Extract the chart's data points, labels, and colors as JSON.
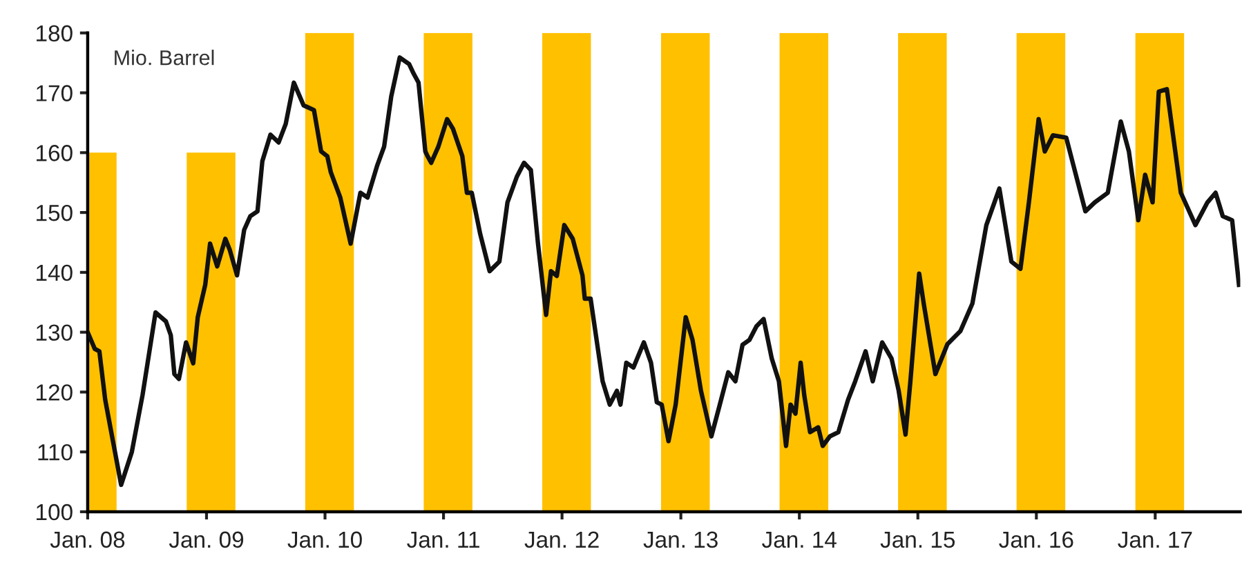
{
  "chart_data": {
    "type": "line",
    "ylabel": "Mio. Barrel",
    "xlim": [
      "2008-01-01",
      "2017-09-20"
    ],
    "ylim": [
      100,
      180
    ],
    "xticks": [
      {
        "value": "2008-01-01",
        "label": "Jan. 08"
      },
      {
        "value": "2009-01-01",
        "label": "Jan. 09"
      },
      {
        "value": "2010-01-01",
        "label": "Jan. 10"
      },
      {
        "value": "2011-01-01",
        "label": "Jan. 11"
      },
      {
        "value": "2012-01-01",
        "label": "Jan. 12"
      },
      {
        "value": "2013-01-01",
        "label": "Jan. 13"
      },
      {
        "value": "2014-01-01",
        "label": "Jan. 14"
      },
      {
        "value": "2015-01-01",
        "label": "Jan. 15"
      },
      {
        "value": "2016-01-01",
        "label": "Jan. 16"
      },
      {
        "value": "2017-01-01",
        "label": "Jan. 17"
      }
    ],
    "yticks": [
      100,
      110,
      120,
      130,
      140,
      150,
      160,
      170,
      180
    ],
    "series": [
      {
        "type": "bar",
        "color": "#ffc000",
        "x": [
          "2008-01-15",
          "2009-01-15",
          "2010-01-15",
          "2011-01-15",
          "2012-01-15",
          "2013-01-15",
          "2014-01-15",
          "2015-01-15",
          "2016-01-15",
          "2017-01-15"
        ],
        "values": [
          160,
          160,
          180,
          180,
          180,
          180,
          180,
          180,
          180,
          180
        ]
      },
      {
        "color": "#111111",
        "x": [
          "2008-01-01",
          "2008-01-23",
          "2008-02-06",
          "2008-02-24",
          "2008-04-13",
          "2008-05-16",
          "2008-06-18",
          "2008-07-28",
          "2008-08-29",
          "2008-09-13",
          "2008-09-24",
          "2008-10-08",
          "2008-10-30",
          "2008-11-21",
          "2008-12-05",
          "2008-12-28",
          "2009-01-12",
          "2009-02-03",
          "2009-02-28",
          "2009-03-14",
          "2009-04-05",
          "2009-04-27",
          "2009-05-16",
          "2009-06-07",
          "2009-06-22",
          "2009-07-17",
          "2009-08-11",
          "2009-09-02",
          "2009-09-27",
          "2009-10-27",
          "2009-11-28",
          "2009-12-20",
          "2010-01-08",
          "2010-01-19",
          "2010-02-17",
          "2010-03-21",
          "2010-04-20",
          "2010-05-12",
          "2010-06-11",
          "2010-07-02",
          "2010-07-24",
          "2010-08-19",
          "2010-09-17",
          "2010-10-01",
          "2010-10-16",
          "2010-11-06",
          "2010-11-13",
          "2010-11-24",
          "2010-12-16",
          "2011-01-12",
          "2011-01-30",
          "2011-02-28",
          "2011-03-14",
          "2011-03-29",
          "2011-04-24",
          "2011-05-23",
          "2011-06-22",
          "2011-07-17",
          "2011-08-15",
          "2011-09-06",
          "2011-09-27",
          "2011-10-19",
          "2011-11-13",
          "2011-11-28",
          "2011-12-16",
          "2012-01-08",
          "2012-02-03",
          "2012-03-04",
          "2012-03-11",
          "2012-03-29",
          "2012-05-05",
          "2012-05-27",
          "2012-06-18",
          "2012-06-29",
          "2012-07-17",
          "2012-08-08",
          "2012-09-09",
          "2012-10-01",
          "2012-10-19",
          "2012-11-03",
          "2012-11-24",
          "2012-12-16",
          "2013-01-16",
          "2013-02-06",
          "2013-03-04",
          "2013-04-05",
          "2013-05-01",
          "2013-05-27",
          "2013-06-18",
          "2013-07-10",
          "2013-07-31",
          "2013-08-22",
          "2013-09-13",
          "2013-10-08",
          "2013-10-30",
          "2013-11-21",
          "2013-12-05",
          "2013-12-20",
          "2014-01-05",
          "2014-01-16",
          "2014-02-03",
          "2014-02-28",
          "2014-03-14",
          "2014-04-05",
          "2014-05-01",
          "2014-05-31",
          "2014-06-22",
          "2014-07-24",
          "2014-08-15",
          "2014-09-13",
          "2014-10-12",
          "2014-11-03",
          "2014-11-24",
          "2014-12-09",
          "2015-01-05",
          "2015-01-19",
          "2015-02-24",
          "2015-04-02",
          "2015-05-12",
          "2015-06-18",
          "2015-07-31",
          "2015-09-09",
          "2015-10-16",
          "2015-11-13",
          "2015-12-09",
          "2016-01-08",
          "2016-01-27",
          "2016-02-21",
          "2016-04-02",
          "2016-04-24",
          "2016-05-31",
          "2016-06-29",
          "2016-08-08",
          "2016-09-17",
          "2016-10-12",
          "2016-11-10",
          "2016-12-01",
          "2016-12-24",
          "2017-01-12",
          "2017-02-06",
          "2017-03-21",
          "2017-05-05",
          "2017-06-11",
          "2017-07-06",
          "2017-07-28",
          "2017-08-26",
          "2017-09-16"
        ],
        "values": [
          130,
          127.2,
          126.8,
          118.7,
          104.5,
          110,
          119.5,
          133.3,
          131.8,
          129.5,
          123,
          122.2,
          128.3,
          124.8,
          132.5,
          137.9,
          144.8,
          141,
          145.6,
          143.7,
          139.5,
          147.1,
          149.4,
          150.2,
          158.6,
          163,
          161.7,
          164.8,
          171.7,
          167.9,
          167.1,
          160.2,
          159.4,
          156.7,
          152.5,
          144.8,
          153.3,
          152.5,
          157.9,
          161,
          169.4,
          175.9,
          174.8,
          173.2,
          171.7,
          160.2,
          159.4,
          158.3,
          161,
          165.6,
          164,
          159.4,
          153.3,
          153.3,
          146.4,
          140.2,
          141.8,
          151.7,
          156,
          158.3,
          157.1,
          144.8,
          132.9,
          140.2,
          139.4,
          147.9,
          145.6,
          139.5,
          135.6,
          135.6,
          121.8,
          117.9,
          120.2,
          117.9,
          124.9,
          124.1,
          128.3,
          124.9,
          118.3,
          117.9,
          111.8,
          117.9,
          132.5,
          128.7,
          120.2,
          112.6,
          117.9,
          123.3,
          121.8,
          127.9,
          128.7,
          131,
          132.2,
          125.6,
          121.8,
          111,
          117.9,
          116.4,
          124.9,
          119.5,
          113.3,
          114.1,
          111,
          112.6,
          113.3,
          118.7,
          121.8,
          126.8,
          121.8,
          128.3,
          125.6,
          120.2,
          112.9,
          121.8,
          139.8,
          134.8,
          123,
          128,
          130.2,
          134.8,
          147.9,
          154,
          141.8,
          140.6,
          151.7,
          165.6,
          160.2,
          162.9,
          162.5,
          157.9,
          150.2,
          151.7,
          153.3,
          165.2,
          160.2,
          148.7,
          156.3,
          151.7,
          170.2,
          170.6,
          153.3,
          147.9,
          151.7,
          153.3,
          149.4,
          148.7,
          137.9
        ]
      }
    ]
  }
}
